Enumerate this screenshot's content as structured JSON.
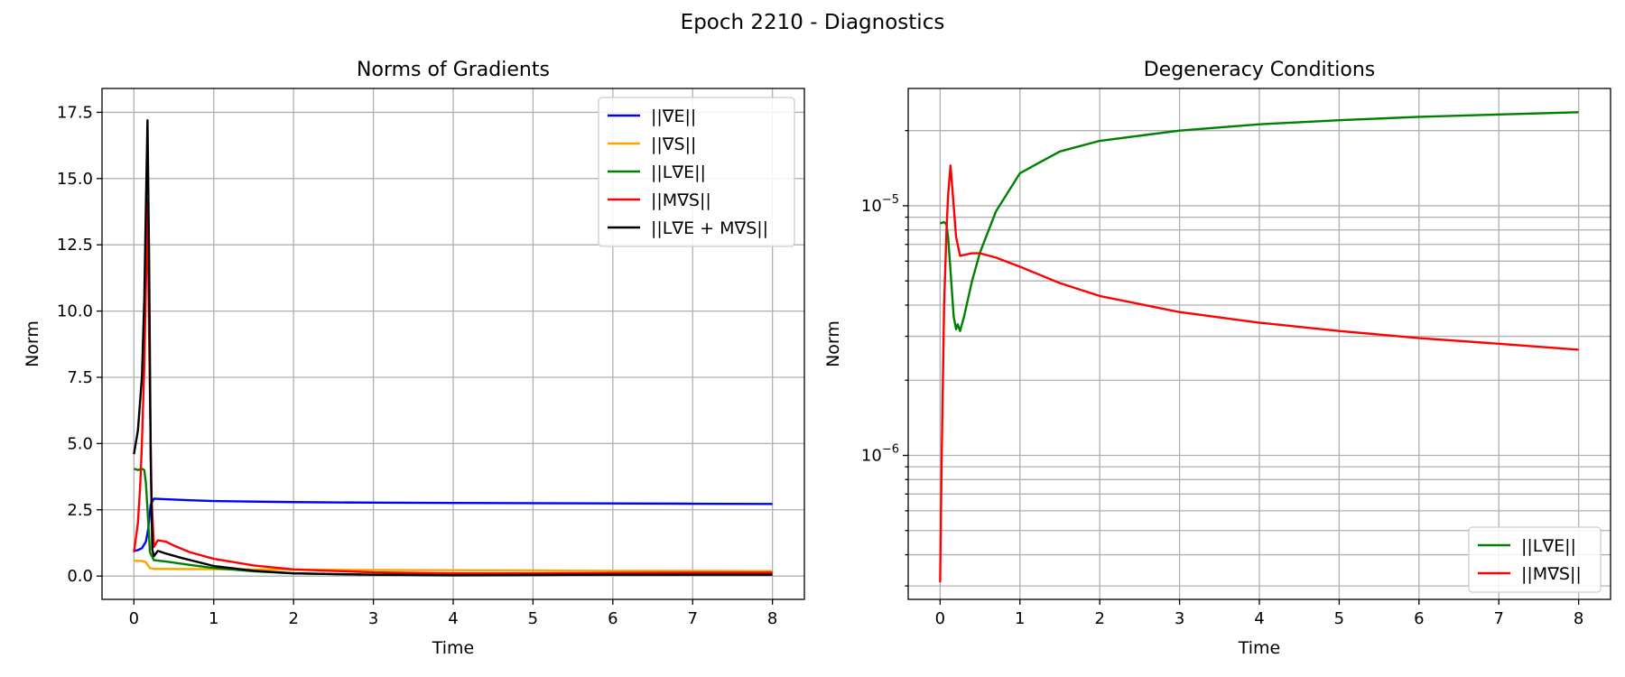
{
  "figure": {
    "suptitle": "Epoch 2210 - Diagnostics"
  },
  "chart_data": [
    {
      "type": "line",
      "title": "Norms of Gradients",
      "xlabel": "Time",
      "ylabel": "Norm",
      "xlim": [
        -0.4,
        8.4
      ],
      "ylim": [
        -0.88,
        18.4
      ],
      "yscale": "linear",
      "grid": true,
      "legend_position": "top-right",
      "xticks": [
        0,
        1,
        2,
        3,
        4,
        5,
        6,
        7,
        8
      ],
      "xtick_labels": [
        "0",
        "1",
        "2",
        "3",
        "4",
        "5",
        "6",
        "7",
        "8"
      ],
      "yticks": [
        0,
        2.5,
        5,
        7.5,
        10,
        12.5,
        15,
        17.5
      ],
      "ytick_labels": [
        "0.0",
        "2.5",
        "5.0",
        "7.5",
        "10.0",
        "12.5",
        "15.0",
        "17.5"
      ],
      "series": [
        {
          "name": "||∇E||",
          "color": "#0000ff",
          "points": [
            [
              0,
              0.95
            ],
            [
              0.05,
              0.98
            ],
            [
              0.1,
              1.05
            ],
            [
              0.15,
              1.3
            ],
            [
              0.18,
              1.8
            ],
            [
              0.21,
              2.7
            ],
            [
              0.25,
              2.92
            ],
            [
              0.4,
              2.9
            ],
            [
              0.7,
              2.86
            ],
            [
              1,
              2.83
            ],
            [
              2,
              2.79
            ],
            [
              3,
              2.77
            ],
            [
              4,
              2.76
            ],
            [
              5,
              2.75
            ],
            [
              6,
              2.74
            ],
            [
              7,
              2.73
            ],
            [
              8,
              2.72
            ]
          ]
        },
        {
          "name": "||∇S||",
          "color": "#ffa500",
          "points": [
            [
              0,
              0.58
            ],
            [
              0.1,
              0.57
            ],
            [
              0.15,
              0.52
            ],
            [
              0.2,
              0.3
            ],
            [
              0.25,
              0.27
            ],
            [
              1,
              0.26
            ],
            [
              2,
              0.24
            ],
            [
              3,
              0.23
            ],
            [
              4,
              0.22
            ],
            [
              5,
              0.21
            ],
            [
              6,
              0.2
            ],
            [
              7,
              0.2
            ],
            [
              8,
              0.19
            ]
          ]
        },
        {
          "name": "||L∇E||",
          "color": "#008000",
          "points": [
            [
              0,
              4.05
            ],
            [
              0.05,
              4.0
            ],
            [
              0.1,
              4.05
            ],
            [
              0.13,
              4.0
            ],
            [
              0.15,
              3.5
            ],
            [
              0.18,
              2.0
            ],
            [
              0.2,
              0.9
            ],
            [
              0.25,
              0.6
            ],
            [
              0.4,
              0.55
            ],
            [
              0.7,
              0.42
            ],
            [
              1,
              0.3
            ],
            [
              1.5,
              0.18
            ],
            [
              2,
              0.1
            ],
            [
              3,
              0.05
            ],
            [
              4,
              0.05
            ],
            [
              5,
              0.07
            ],
            [
              6,
              0.09
            ],
            [
              7,
              0.1
            ],
            [
              8,
              0.12
            ]
          ]
        },
        {
          "name": "||M∇S||",
          "color": "#ff0000",
          "points": [
            [
              0,
              0.9
            ],
            [
              0.05,
              2.0
            ],
            [
              0.08,
              3.5
            ],
            [
              0.1,
              5.0
            ],
            [
              0.13,
              8.0
            ],
            [
              0.15,
              11.0
            ],
            [
              0.17,
              14.2
            ],
            [
              0.19,
              9.0
            ],
            [
              0.22,
              3.0
            ],
            [
              0.25,
              1.1
            ],
            [
              0.3,
              1.35
            ],
            [
              0.4,
              1.3
            ],
            [
              0.5,
              1.15
            ],
            [
              0.7,
              0.9
            ],
            [
              1,
              0.65
            ],
            [
              1.5,
              0.4
            ],
            [
              2,
              0.25
            ],
            [
              3,
              0.14
            ],
            [
              4,
              0.1
            ],
            [
              5,
              0.1
            ],
            [
              6,
              0.12
            ],
            [
              7,
              0.13
            ],
            [
              8,
              0.13
            ]
          ]
        },
        {
          "name": "||L∇E + M∇S||",
          "color": "#000000",
          "points": [
            [
              0,
              4.6
            ],
            [
              0.05,
              5.5
            ],
            [
              0.1,
              7.5
            ],
            [
              0.13,
              10.5
            ],
            [
              0.15,
              14.0
            ],
            [
              0.17,
              17.2
            ],
            [
              0.19,
              12.0
            ],
            [
              0.21,
              4.5
            ],
            [
              0.23,
              1.0
            ],
            [
              0.25,
              0.75
            ],
            [
              0.3,
              0.95
            ],
            [
              0.4,
              0.85
            ],
            [
              0.6,
              0.68
            ],
            [
              1,
              0.38
            ],
            [
              1.5,
              0.2
            ],
            [
              2,
              0.1
            ],
            [
              3,
              0.05
            ],
            [
              4,
              0.03
            ],
            [
              5,
              0.04
            ],
            [
              6,
              0.05
            ],
            [
              7,
              0.05
            ],
            [
              8,
              0.05
            ]
          ]
        }
      ]
    },
    {
      "type": "line",
      "title": "Degeneracy Conditions",
      "xlabel": "Time",
      "ylabel": "Norm",
      "xlim": [
        -0.4,
        8.4
      ],
      "ylim": [
        2.65e-07,
        2.95e-05
      ],
      "yscale": "log",
      "grid": true,
      "legend_position": "lower-right",
      "xticks": [
        0,
        1,
        2,
        3,
        4,
        5,
        6,
        7,
        8
      ],
      "xtick_labels": [
        "0",
        "1",
        "2",
        "3",
        "4",
        "5",
        "6",
        "7",
        "8"
      ],
      "yticks": [
        1e-06,
        1e-05
      ],
      "ytick_labels": [
        [
          "10",
          "−6"
        ],
        [
          "10",
          "−5"
        ]
      ],
      "yminor_ticks": [
        3e-07,
        4e-07,
        5e-07,
        6e-07,
        7e-07,
        8e-07,
        9e-07,
        2e-06,
        3e-06,
        4e-06,
        5e-06,
        6e-06,
        7e-06,
        8e-06,
        9e-06,
        2e-05
      ],
      "series": [
        {
          "name": "||L∇E||",
          "color": "#008000",
          "points": [
            [
              0,
              8.5e-06
            ],
            [
              0.05,
              8.6e-06
            ],
            [
              0.08,
              8.4e-06
            ],
            [
              0.1,
              7.5e-06
            ],
            [
              0.13,
              5.5e-06
            ],
            [
              0.17,
              3.6e-06
            ],
            [
              0.2,
              3.2e-06
            ],
            [
              0.22,
              3.35e-06
            ],
            [
              0.25,
              3.15e-06
            ],
            [
              0.3,
              3.6e-06
            ],
            [
              0.4,
              5e-06
            ],
            [
              0.5,
              6.5e-06
            ],
            [
              0.7,
              9.5e-06
            ],
            [
              1,
              1.35e-05
            ],
            [
              1.5,
              1.65e-05
            ],
            [
              2,
              1.82e-05
            ],
            [
              3,
              2e-05
            ],
            [
              4,
              2.12e-05
            ],
            [
              5,
              2.2e-05
            ],
            [
              6,
              2.27e-05
            ],
            [
              7,
              2.32e-05
            ],
            [
              8,
              2.37e-05
            ]
          ]
        },
        {
          "name": "||M∇S||",
          "color": "#ff0000",
          "points": [
            [
              0,
              3.1e-07
            ],
            [
              0.02,
              1e-06
            ],
            [
              0.05,
              4e-06
            ],
            [
              0.08,
              8e-06
            ],
            [
              0.1,
              1.1e-05
            ],
            [
              0.13,
              1.45e-05
            ],
            [
              0.16,
              1.1e-05
            ],
            [
              0.2,
              7.5e-06
            ],
            [
              0.25,
              6.3e-06
            ],
            [
              0.3,
              6.35e-06
            ],
            [
              0.4,
              6.45e-06
            ],
            [
              0.5,
              6.45e-06
            ],
            [
              0.7,
              6.2e-06
            ],
            [
              1,
              5.7e-06
            ],
            [
              1.5,
              4.9e-06
            ],
            [
              2,
              4.35e-06
            ],
            [
              3,
              3.75e-06
            ],
            [
              4,
              3.4e-06
            ],
            [
              5,
              3.15e-06
            ],
            [
              6,
              2.95e-06
            ],
            [
              7,
              2.8e-06
            ],
            [
              8,
              2.65e-06
            ]
          ]
        }
      ]
    }
  ]
}
